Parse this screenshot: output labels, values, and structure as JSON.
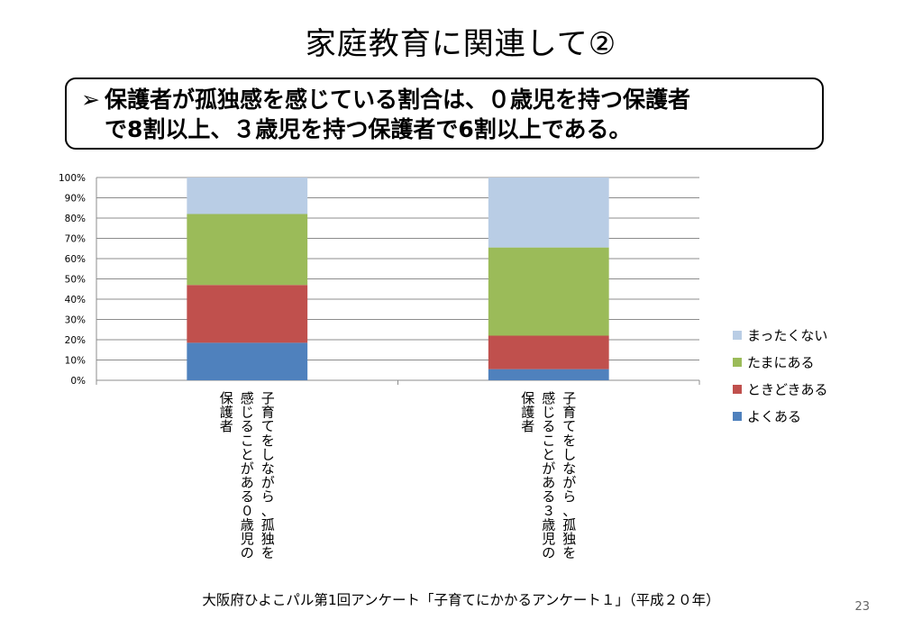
{
  "slide": {
    "title": "家庭教育に関連して②",
    "summary": {
      "bullet": "➢",
      "line1": "保護者が孤独感を感じている割合は、０歳児を持つ保護者",
      "line2": "で8割以上、３歳児を持つ保護者で6割以上である。"
    },
    "source": "大阪府ひよこパル第1回アンケート「子育てにかかるアンケート１」（平成２０年）",
    "page_number": "23"
  },
  "chart_data": {
    "type": "bar",
    "stacked": true,
    "percent": true,
    "title": "",
    "xlabel": "",
    "ylabel": "",
    "ylim": [
      0,
      100
    ],
    "yticks": [
      "0%",
      "10%",
      "20%",
      "30%",
      "40%",
      "50%",
      "60%",
      "70%",
      "80%",
      "90%",
      "100%"
    ],
    "grid": true,
    "legend_position": "right",
    "categories": [
      "子育てをしながら、孤独を感じることがある０歳児の保護者",
      "子育てをしながら、孤独を感じることがある３歳児の保護者"
    ],
    "category_label_lines": [
      [
        "子育てをしながら、孤独を",
        "感じることがある０歳児の",
        "保護者"
      ],
      [
        "子育てをしながら、孤独を",
        "感じることがある３歳児の",
        "保護者"
      ]
    ],
    "series": [
      {
        "name": "よくある",
        "color": "#4f81bd",
        "values": [
          18.5,
          5.5
        ]
      },
      {
        "name": "ときどきある",
        "color": "#c0504d",
        "values": [
          28.5,
          16.5
        ]
      },
      {
        "name": "たまにある",
        "color": "#9bbb59",
        "values": [
          35.0,
          43.5
        ]
      },
      {
        "name": "まったくない",
        "color": "#b9cde5",
        "values": [
          18.0,
          34.5
        ]
      }
    ],
    "legend_order": [
      "まったくない",
      "たまにある",
      "ときどきある",
      "よくある"
    ]
  }
}
